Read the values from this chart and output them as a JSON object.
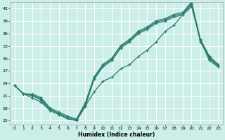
{
  "xlabel": "Humidex (Indice chaleur)",
  "bg_color": "#cceee8",
  "grid_color": "#ffffff",
  "line_color": "#2d7a6e",
  "xlim": [
    -0.5,
    23.5
  ],
  "ylim": [
    14,
    43.5
  ],
  "yticks": [
    15,
    18,
    21,
    24,
    27,
    30,
    33,
    36,
    39,
    42
  ],
  "xticks": [
    0,
    1,
    2,
    3,
    4,
    5,
    6,
    7,
    8,
    9,
    10,
    11,
    12,
    13,
    14,
    15,
    16,
    17,
    18,
    19,
    20,
    21,
    22,
    23
  ],
  "upper_line1_x": [
    0,
    1,
    2,
    3,
    4,
    5,
    6,
    7,
    8,
    9,
    10,
    11,
    12,
    13,
    14,
    15,
    16,
    17,
    18,
    19,
    20,
    21,
    22,
    23
  ],
  "upper_line1_y": [
    23.5,
    21.5,
    21.0,
    20.0,
    17.5,
    16.5,
    15.5,
    15.0,
    18.5,
    25.0,
    28.0,
    29.5,
    32.5,
    34.0,
    36.0,
    37.0,
    38.5,
    39.0,
    40.0,
    40.5,
    43.0,
    34.0,
    30.0,
    28.0
  ],
  "upper_line2_x": [
    0,
    1,
    2,
    3,
    4,
    5,
    6,
    7,
    8,
    9,
    10,
    11,
    12,
    13,
    14,
    15,
    16,
    17,
    18,
    19,
    20,
    21,
    22,
    23
  ],
  "upper_line2_y": [
    23.5,
    21.5,
    21.2,
    20.3,
    17.8,
    16.8,
    15.8,
    15.2,
    19.0,
    25.3,
    28.3,
    29.8,
    32.8,
    34.3,
    36.3,
    37.3,
    38.8,
    39.3,
    40.3,
    40.8,
    43.3,
    34.3,
    30.3,
    28.3
  ],
  "upper_line3_x": [
    0,
    1,
    2,
    3,
    4,
    5,
    6,
    7,
    8,
    9,
    10,
    11,
    12,
    13,
    14,
    15,
    16,
    17,
    18,
    19,
    20,
    21,
    22,
    23
  ],
  "upper_line3_y": [
    23.5,
    21.5,
    21.4,
    20.6,
    18.1,
    17.1,
    16.1,
    15.4,
    19.3,
    25.6,
    28.6,
    30.1,
    33.1,
    34.6,
    36.6,
    37.6,
    39.1,
    39.6,
    40.6,
    41.1,
    43.6,
    34.6,
    30.6,
    28.6
  ],
  "lower_line_x": [
    0,
    1,
    2,
    3,
    4,
    5,
    6,
    7,
    8,
    9,
    10,
    11,
    12,
    13,
    14,
    15,
    16,
    17,
    18,
    19,
    20,
    21,
    22,
    23
  ],
  "lower_line_y": [
    23.5,
    21.5,
    20.5,
    19.5,
    17.5,
    16.5,
    15.5,
    15.0,
    18.5,
    22.0,
    24.5,
    25.5,
    27.5,
    28.5,
    30.5,
    32.0,
    34.0,
    36.5,
    38.0,
    40.5,
    42.5,
    34.5,
    29.5,
    28.0
  ]
}
